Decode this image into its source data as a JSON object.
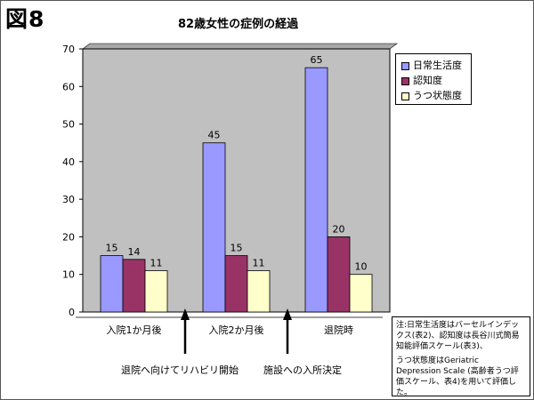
{
  "figure_label": "図8",
  "chart_data": {
    "type": "bar",
    "title": "82歳女性の症例の経過",
    "categories": [
      "入院1か月後",
      "入院2か月後",
      "退院時"
    ],
    "series": [
      {
        "name": "日常生活度",
        "values": [
          15,
          45,
          65
        ],
        "color": "#9999ff"
      },
      {
        "name": "認知度",
        "values": [
          14,
          15,
          20
        ],
        "color": "#993366"
      },
      {
        "name": "うつ状態度",
        "values": [
          11,
          11,
          10
        ],
        "color": "#ffffcc"
      }
    ],
    "ylim": [
      0,
      70
    ],
    "yticks": [
      0,
      10,
      20,
      30,
      40,
      50,
      60,
      70
    ],
    "plot_background": "#c0c0c0",
    "grid": false,
    "legend_position": "right"
  },
  "annotations": [
    {
      "text": "退院へ向けてリハビリ開始"
    },
    {
      "text": "施設への入所決定"
    }
  ],
  "note": {
    "line1": "注:日常生活度はバーセルインデックス(表2)、認知度は長谷川式簡易知能評価スケール(表3)、",
    "line2": "うつ状態度はGeriatric Depression Scale (高齢者うつ評価スケール、表4)を用いて評価した。"
  }
}
